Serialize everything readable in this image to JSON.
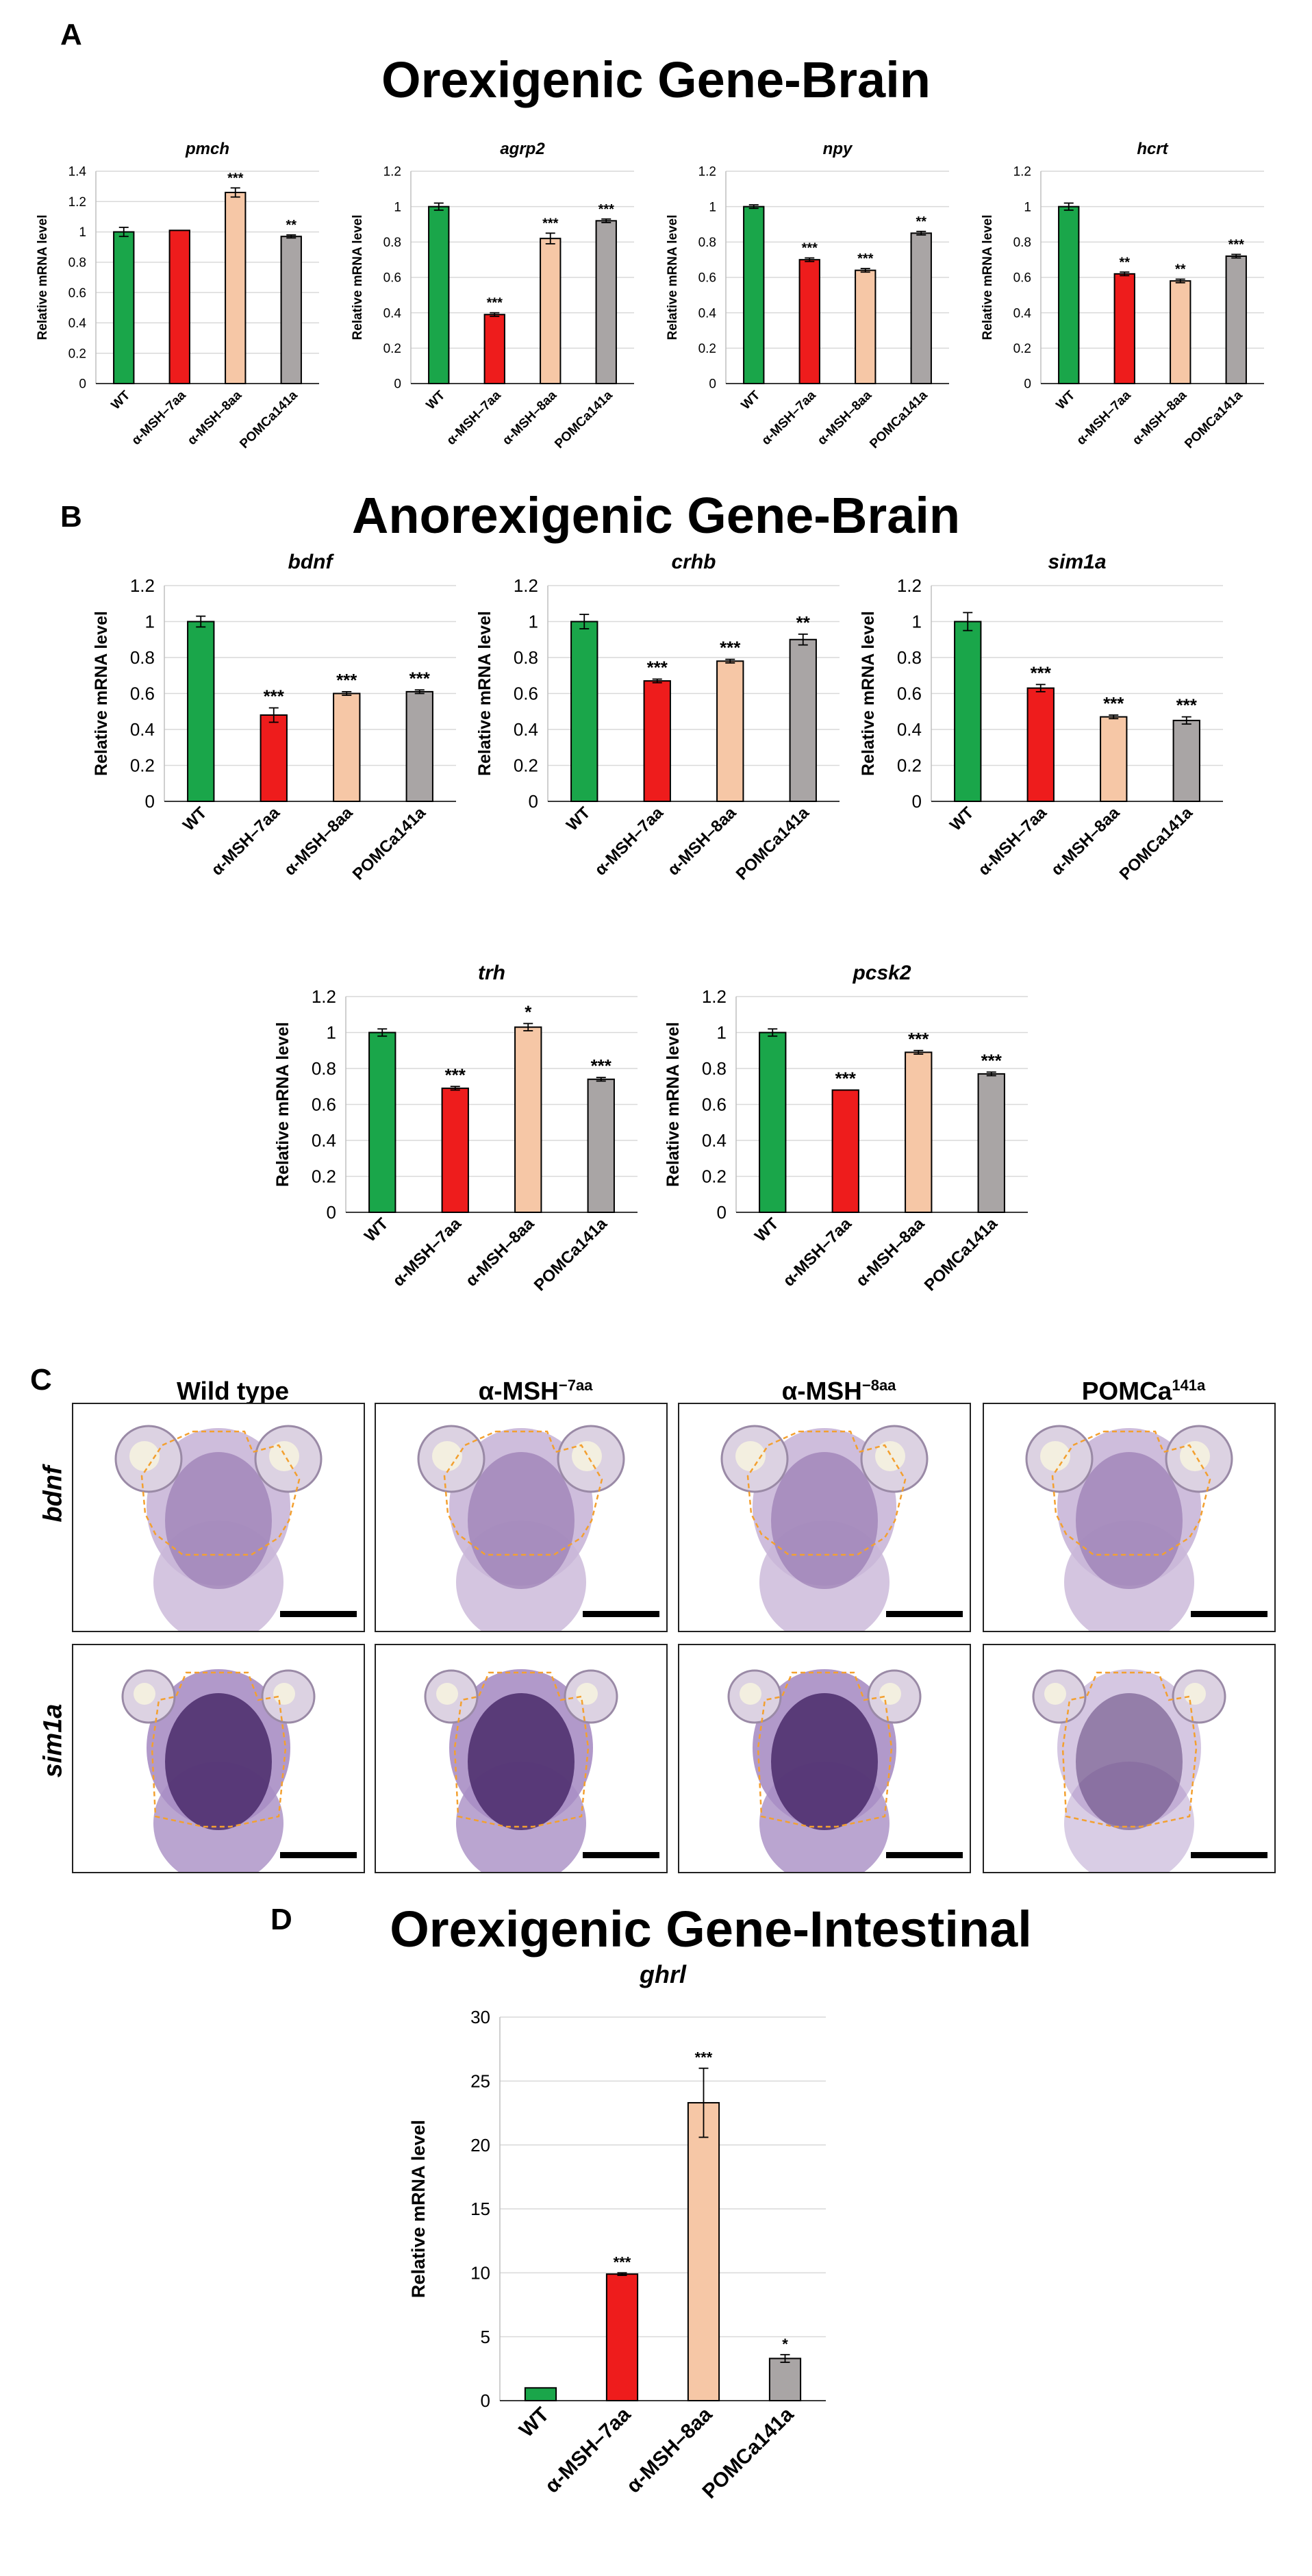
{
  "colors": {
    "WT": "#1aa64a",
    "MSH7": "#ee1c1c",
    "MSH8": "#f6c7a6",
    "POMC": "#a9a5a5"
  },
  "panels": {
    "A": "A",
    "B": "B",
    "C": "C",
    "D": "D"
  },
  "titles": {
    "A": "Orexigenic Gene-Brain",
    "B": "Anorexigenic Gene-Brain",
    "D": "Orexigenic Gene-Intestinal"
  },
  "panel_c": {
    "columns": [
      {
        "main": "Wild type",
        "sup": ""
      },
      {
        "main": "α-MSH",
        "sup": "−7aa"
      },
      {
        "main": "α-MSH",
        "sup": "−8aa"
      },
      {
        "main": "POMCa",
        "sup": "141a"
      }
    ],
    "rows": [
      "bdnf",
      "sim1a"
    ]
  },
  "chart_data": [
    {
      "id": "pmch",
      "type": "bar",
      "title": "pmch",
      "ylabel": "Relative mRNA level",
      "ylim": [
        0,
        1.4
      ],
      "yticks": [
        0,
        0.2,
        0.4,
        0.6,
        0.8,
        1,
        1.2,
        1.4
      ],
      "categories": [
        "WT",
        "α-MSH–7aa",
        "α-MSH–8aa",
        "POMCa141a"
      ],
      "values": [
        1.0,
        1.01,
        1.26,
        0.97
      ],
      "errors": [
        0.03,
        0.0,
        0.03,
        0.01
      ],
      "labels": [
        "",
        "",
        "***",
        "**"
      ]
    },
    {
      "id": "agrp2",
      "type": "bar",
      "title": "agrp2",
      "ylabel": "Relative mRNA level",
      "ylim": [
        0,
        1.2
      ],
      "yticks": [
        0,
        0.2,
        0.4,
        0.6,
        0.8,
        1,
        1.2
      ],
      "categories": [
        "WT",
        "α-MSH–7aa",
        "α-MSH–8aa",
        "POMCa141a"
      ],
      "values": [
        1.0,
        0.39,
        0.82,
        0.92
      ],
      "errors": [
        0.02,
        0.01,
        0.03,
        0.01
      ],
      "labels": [
        "",
        "***",
        "***",
        "***"
      ]
    },
    {
      "id": "npy",
      "type": "bar",
      "title": "npy",
      "ylabel": "Relative mRNA level",
      "ylim": [
        0,
        1.2
      ],
      "yticks": [
        0,
        0.2,
        0.4,
        0.6,
        0.8,
        1,
        1.2
      ],
      "categories": [
        "WT",
        "α-MSH–7aa",
        "α-MSH–8aa",
        "POMCa141a"
      ],
      "values": [
        1.0,
        0.7,
        0.64,
        0.85
      ],
      "errors": [
        0.01,
        0.01,
        0.01,
        0.01
      ],
      "labels": [
        "",
        "***",
        "***",
        "**"
      ]
    },
    {
      "id": "hcrt",
      "type": "bar",
      "title": "hcrt",
      "ylabel": "Relative mRNA level",
      "ylim": [
        0,
        1.2
      ],
      "yticks": [
        0,
        0.2,
        0.4,
        0.6,
        0.8,
        1,
        1.2
      ],
      "categories": [
        "WT",
        "α-MSH–7aa",
        "α-MSH–8aa",
        "POMCa141a"
      ],
      "values": [
        1.0,
        0.62,
        0.58,
        0.72
      ],
      "errors": [
        0.02,
        0.01,
        0.01,
        0.01
      ],
      "labels": [
        "",
        "**",
        "**",
        "***"
      ]
    },
    {
      "id": "bdnf",
      "type": "bar",
      "title": "bdnf",
      "ylabel": "Relative mRNA level",
      "ylim": [
        0,
        1.2
      ],
      "yticks": [
        0,
        0.2,
        0.4,
        0.6,
        0.8,
        1,
        1.2
      ],
      "categories": [
        "WT",
        "α-MSH–7aa",
        "α-MSH–8aa",
        "POMCa141a"
      ],
      "values": [
        1.0,
        0.48,
        0.6,
        0.61
      ],
      "errors": [
        0.03,
        0.04,
        0.01,
        0.01
      ],
      "labels": [
        "",
        "***",
        "***",
        "***"
      ]
    },
    {
      "id": "crhb",
      "type": "bar",
      "title": "crhb",
      "ylabel": "Relative mRNA level",
      "ylim": [
        0,
        1.2
      ],
      "yticks": [
        0,
        0.2,
        0.4,
        0.6,
        0.8,
        1,
        1.2
      ],
      "categories": [
        "WT",
        "α-MSH–7aa",
        "α-MSH–8aa",
        "POMCa141a"
      ],
      "values": [
        1.0,
        0.67,
        0.78,
        0.9
      ],
      "errors": [
        0.04,
        0.01,
        0.01,
        0.03
      ],
      "labels": [
        "",
        "***",
        "***",
        "**"
      ]
    },
    {
      "id": "sim1a",
      "type": "bar",
      "title": "sim1a",
      "ylabel": "Relative mRNA level",
      "ylim": [
        0,
        1.2
      ],
      "yticks": [
        0,
        0.2,
        0.4,
        0.6,
        0.8,
        1,
        1.2
      ],
      "categories": [
        "WT",
        "α-MSH–7aa",
        "α-MSH–8aa",
        "POMCa141a"
      ],
      "values": [
        1.0,
        0.63,
        0.47,
        0.45
      ],
      "errors": [
        0.05,
        0.02,
        0.01,
        0.02
      ],
      "labels": [
        "",
        "***",
        "***",
        "***"
      ]
    },
    {
      "id": "trh",
      "type": "bar",
      "title": "trh",
      "ylabel": "Relative mRNA level",
      "ylim": [
        0,
        1.2
      ],
      "yticks": [
        0,
        0.2,
        0.4,
        0.6,
        0.8,
        1,
        1.2
      ],
      "categories": [
        "WT",
        "α-MSH–7aa",
        "α-MSH–8aa",
        "POMCa141a"
      ],
      "values": [
        1.0,
        0.69,
        1.03,
        0.74
      ],
      "errors": [
        0.02,
        0.01,
        0.02,
        0.01
      ],
      "labels": [
        "",
        "***",
        "*",
        "***"
      ]
    },
    {
      "id": "pcsk2",
      "type": "bar",
      "title": "pcsk2",
      "ylabel": "Relative mRNA level",
      "ylim": [
        0,
        1.2
      ],
      "yticks": [
        0,
        0.2,
        0.4,
        0.6,
        0.8,
        1,
        1.2
      ],
      "categories": [
        "WT",
        "α-MSH–7aa",
        "α-MSH–8aa",
        "POMCa141a"
      ],
      "values": [
        1.0,
        0.68,
        0.89,
        0.77
      ],
      "errors": [
        0.02,
        0.0,
        0.01,
        0.01
      ],
      "labels": [
        "",
        "***",
        "***",
        "***"
      ]
    },
    {
      "id": "ghrl",
      "type": "bar",
      "title": "ghrl",
      "ylabel": "Relative mRNA level",
      "ylim": [
        0,
        30
      ],
      "yticks": [
        0,
        5,
        10,
        15,
        20,
        25,
        30
      ],
      "categories": [
        "WT",
        "α-MSH–7aa",
        "α-MSH–8aa",
        "POMCa141a"
      ],
      "values": [
        1.0,
        9.9,
        23.3,
        3.3
      ],
      "errors": [
        0.0,
        0.1,
        2.7,
        0.3
      ],
      "labels": [
        "",
        "***",
        "***",
        "*"
      ]
    }
  ]
}
